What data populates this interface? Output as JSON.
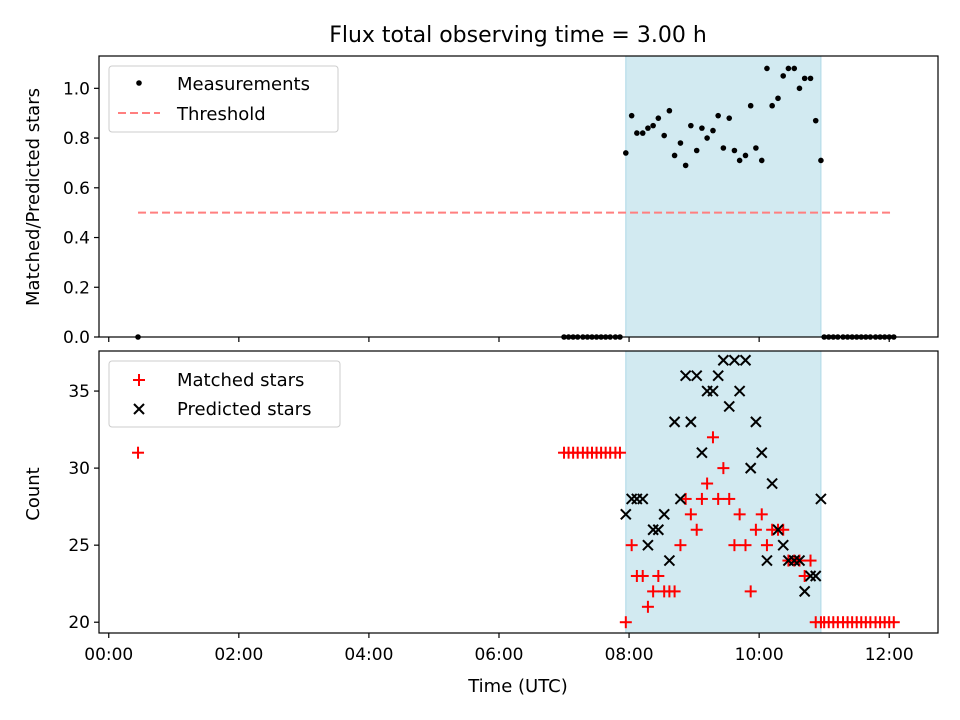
{
  "chart_data": {
    "type": "scatter",
    "title": "Flux total observing time = 3.00 h",
    "xlabel": "Time (UTC)",
    "xlim": [
      -0.15,
      12.75
    ],
    "xticks": [
      0,
      2,
      4,
      6,
      8,
      10,
      12
    ],
    "xtick_labels": [
      "00:00",
      "02:00",
      "04:00",
      "06:00",
      "08:00",
      "10:00",
      "12:00"
    ],
    "highlight_span": [
      7.95,
      10.95
    ],
    "highlight_color": "#add8e6",
    "top": {
      "ylabel": "Matched/Predicted stars",
      "ylim": [
        0.0,
        1.13
      ],
      "yticks": [
        0.0,
        0.2,
        0.4,
        0.6,
        0.8,
        1.0
      ],
      "ytick_labels": [
        "0.0",
        "0.2",
        "0.4",
        "0.6",
        "0.8",
        "1.0"
      ],
      "legend": {
        "position": "top-left",
        "entries": [
          "Measurements",
          "Threshold"
        ]
      },
      "threshold": {
        "value": 0.5,
        "x_range": [
          0.45,
          12.05
        ],
        "color": "#ff7f7f"
      },
      "measurements": {
        "x": [
          0.45,
          7.0,
          7.07,
          7.14,
          7.21,
          7.29,
          7.36,
          7.43,
          7.5,
          7.57,
          7.64,
          7.71,
          7.79,
          7.86,
          7.95,
          8.04,
          8.12,
          8.21,
          8.29,
          8.37,
          8.45,
          8.54,
          8.62,
          8.7,
          8.79,
          8.87,
          8.95,
          9.04,
          9.12,
          9.2,
          9.29,
          9.37,
          9.45,
          9.54,
          9.62,
          9.7,
          9.79,
          9.87,
          9.95,
          10.04,
          10.12,
          10.2,
          10.29,
          10.37,
          10.45,
          10.54,
          10.62,
          10.7,
          10.79,
          10.87,
          10.95,
          11.0,
          11.07,
          11.14,
          11.21,
          11.29,
          11.36,
          11.43,
          11.5,
          11.57,
          11.64,
          11.71,
          11.79,
          11.86,
          11.93,
          12.0,
          12.07
        ],
        "y": [
          0,
          0,
          0,
          0,
          0,
          0,
          0,
          0,
          0,
          0,
          0,
          0,
          0,
          0,
          0.74,
          0.89,
          0.82,
          0.82,
          0.84,
          0.85,
          0.88,
          0.81,
          0.91,
          0.73,
          0.78,
          0.69,
          0.85,
          0.75,
          0.84,
          0.8,
          0.83,
          0.89,
          0.76,
          0.88,
          0.75,
          0.71,
          0.73,
          0.93,
          0.76,
          0.71,
          1.08,
          0.93,
          0.96,
          1.05,
          1.08,
          1.08,
          1.0,
          1.04,
          1.04,
          0.87,
          0.71,
          0,
          0,
          0,
          0,
          0,
          0,
          0,
          0,
          0,
          0,
          0,
          0,
          0,
          0,
          0,
          0
        ]
      }
    },
    "bottom": {
      "ylabel": "Count",
      "ylim": [
        19.3,
        37.6
      ],
      "yticks": [
        20,
        25,
        30,
        35
      ],
      "ytick_labels": [
        "20",
        "25",
        "30",
        "35"
      ],
      "legend": {
        "position": "top-left",
        "entries": [
          "Matched stars",
          "Predicted stars"
        ]
      },
      "matched": {
        "x": [
          0.45,
          7.0,
          7.07,
          7.14,
          7.21,
          7.29,
          7.36,
          7.43,
          7.5,
          7.57,
          7.64,
          7.71,
          7.79,
          7.86,
          7.95,
          8.04,
          8.12,
          8.21,
          8.29,
          8.37,
          8.45,
          8.54,
          8.62,
          8.7,
          8.79,
          8.87,
          8.95,
          9.04,
          9.12,
          9.2,
          9.29,
          9.37,
          9.45,
          9.54,
          9.62,
          9.7,
          9.79,
          9.87,
          9.95,
          10.04,
          10.12,
          10.2,
          10.29,
          10.37,
          10.45,
          10.54,
          10.62,
          10.7,
          10.79,
          10.87,
          10.95,
          11.0,
          11.07,
          11.14,
          11.21,
          11.29,
          11.36,
          11.43,
          11.5,
          11.57,
          11.64,
          11.71,
          11.79,
          11.86,
          11.93,
          12.0,
          12.07
        ],
        "y": [
          31,
          31,
          31,
          31,
          31,
          31,
          31,
          31,
          31,
          31,
          31,
          31,
          31,
          31,
          20,
          25,
          23,
          23,
          21,
          22,
          23,
          22,
          22,
          22,
          25,
          28,
          27,
          26,
          28,
          29,
          32,
          28,
          30,
          28,
          25,
          27,
          25,
          22,
          26,
          27,
          25,
          26,
          26,
          26,
          24,
          24,
          24,
          23,
          24,
          20,
          20,
          20,
          20,
          20,
          20,
          20,
          20,
          20,
          20,
          20,
          20,
          20,
          20,
          20,
          20,
          20,
          20
        ]
      },
      "predicted": {
        "x": [
          7.95,
          8.04,
          8.12,
          8.21,
          8.29,
          8.37,
          8.45,
          8.54,
          8.62,
          8.7,
          8.79,
          8.87,
          8.95,
          9.04,
          9.12,
          9.2,
          9.29,
          9.37,
          9.45,
          9.54,
          9.62,
          9.7,
          9.79,
          9.87,
          9.95,
          10.04,
          10.12,
          10.2,
          10.29,
          10.37,
          10.45,
          10.54,
          10.62,
          10.7,
          10.79,
          10.87,
          10.95
        ],
        "y": [
          27,
          28,
          28,
          28,
          25,
          26,
          26,
          27,
          24,
          33,
          28,
          36,
          33,
          36,
          31,
          35,
          35,
          36,
          37,
          34,
          37,
          35,
          37,
          30,
          33,
          31,
          24,
          29,
          26,
          25,
          24,
          24,
          24,
          22,
          23,
          23,
          28
        ]
      }
    }
  }
}
